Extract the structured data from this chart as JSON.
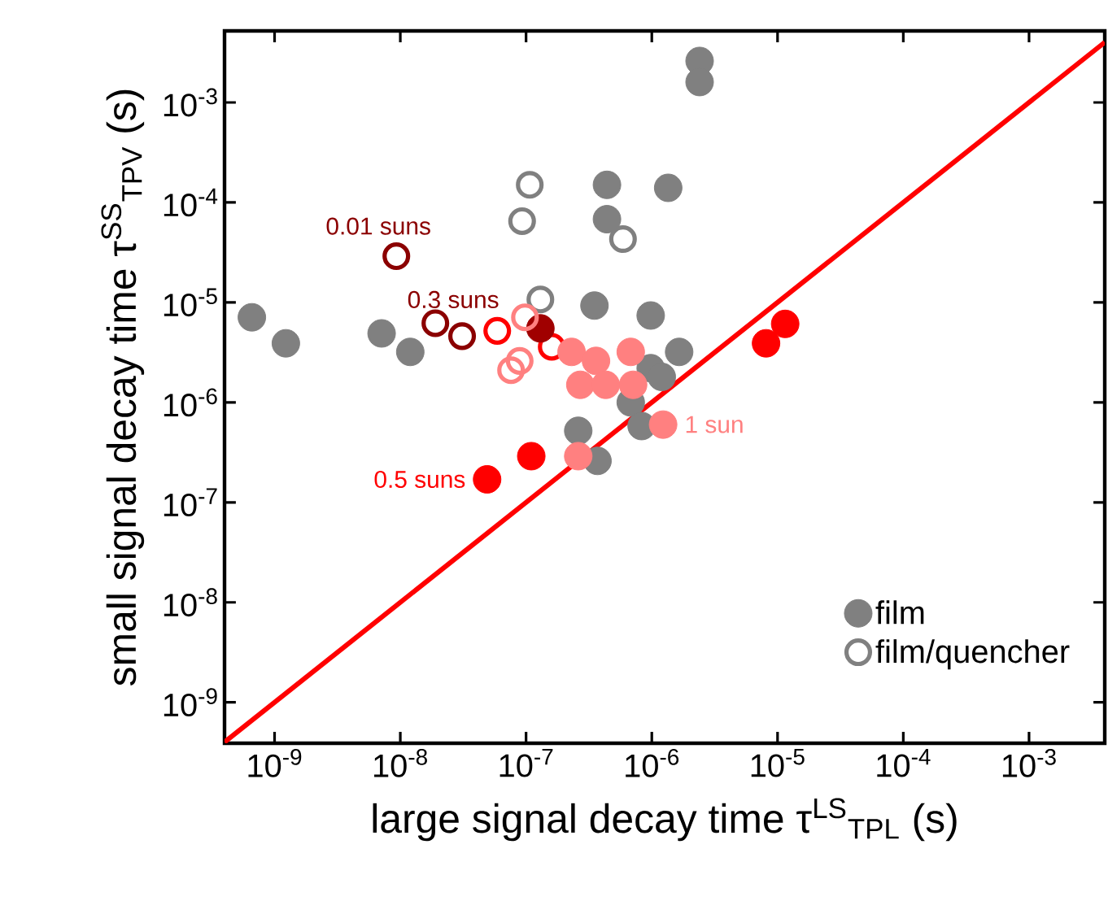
{
  "chart_data": {
    "type": "scatter",
    "xlabel": "large signal decay time τ$^{LS}$$_{TPL}$ (s)",
    "ylabel": "small signal decay time τ$^{SS}$$_{TPV}$ (s)",
    "log": "xy",
    "xlim": [
      4e-10,
      0.004
    ],
    "ylim": [
      3.9e-10,
      0.0052
    ],
    "xticks": [
      {
        "value": 1e-09,
        "label": "10$^{-9}$"
      },
      {
        "value": 1e-08,
        "label": "10$^{-8}$"
      },
      {
        "value": 1e-07,
        "label": "10$^{-7}$"
      },
      {
        "value": 1e-06,
        "label": "10$^{-6}$"
      },
      {
        "value": 1e-05,
        "label": "10$^{-5}$"
      },
      {
        "value": 0.0001,
        "label": "10$^{-4}$"
      },
      {
        "value": 0.001,
        "label": "10$^{-3}$"
      }
    ],
    "yticks": [
      {
        "value": 1e-09,
        "label": "10$^{-9}$"
      },
      {
        "value": 1e-08,
        "label": "10$^{-8}$"
      },
      {
        "value": 1e-07,
        "label": "10$^{-7}$"
      },
      {
        "value": 1e-06,
        "label": "10$^{-6}$"
      },
      {
        "value": 1e-05,
        "label": "10$^{-5}$"
      },
      {
        "value": 0.0001,
        "label": "10$^{-4}$"
      },
      {
        "value": 0.001,
        "label": "10$^{-3}$"
      }
    ],
    "legend": "bottom right",
    "marker": "circle",
    "series": [
      {
        "name": "film",
        "color": "#808080",
        "x": [
          6.6e-10,
          1.23e-09,
          7.1e-09,
          1.2e-08,
          3.5e-07,
          4.4e-07,
          4.4e-07,
          2.4e-06,
          2.4e-06,
          1.35e-06,
          9.8e-07,
          1.65e-06,
          9.8e-07,
          1.2e-06,
          6.8e-07,
          8.3e-07,
          2.6e-07,
          3.7e-07
        ],
        "values": [
          7.1e-06,
          3.9e-06,
          4.9e-06,
          3.2e-06,
          9.3e-06,
          0.00015,
          6.8e-05,
          0.0026,
          0.0016,
          0.00014,
          7.4e-06,
          3.2e-06,
          2.2e-06,
          1.8e-06,
          1e-06,
          5.8e-07,
          5.2e-07,
          2.6e-07
        ]
      },
      {
        "name": "film/quencher",
        "color": "#808080",
        "marker": "circle open",
        "x": [
          1.07e-07,
          9.3e-08,
          1.3e-07,
          5.9e-07
        ],
        "values": [
          0.00015,
          6.5e-05,
          1.07e-05,
          4.3e-05
        ]
      },
      {
        "color": "#8b0000",
        "marker": "circle open",
        "x": [
          9.3e-09,
          1.9e-08,
          3.1e-08
        ],
        "values": [
          2.9e-05,
          6.2e-06,
          4.6e-06
        ]
      },
      {
        "color": "#ff0000",
        "marker": "circle open",
        "x": [
          5.9e-08,
          1.6e-07
        ],
        "values": [
          5.2e-06,
          3.6e-06
        ]
      },
      {
        "color": "#a00000",
        "x": [
          1.3e-07
        ],
        "values": [
          5.5e-06
        ]
      },
      {
        "color": "#ff8080",
        "marker": "circle open",
        "x": [
          9.8e-08,
          8.9e-08,
          7.6e-08
        ],
        "values": [
          7.1e-06,
          2.6e-06,
          2.1e-06
        ]
      },
      {
        "color": "#ff8080",
        "x": [
          2.3e-07,
          3.6e-07,
          6.8e-07,
          2.7e-07,
          4.3e-07,
          7.1e-07,
          1.23e-06,
          2.6e-07
        ],
        "values": [
          3.2e-06,
          2.6e-06,
          3.2e-06,
          1.5e-06,
          1.5e-06,
          1.5e-06,
          6e-07,
          2.9e-07
        ]
      },
      {
        "color": "#ff0000",
        "x": [
          4.9e-08,
          1.1e-07,
          8.1e-06,
          1.15e-05
        ],
        "values": [
          1.7e-07,
          2.9e-07,
          3.9e-06,
          6.1e-06
        ]
      },
      {
        "type": "line",
        "color": "#ff0000",
        "marker": "none",
        "x": [
          4e-10,
          0.004
        ],
        "values": [
          4e-10,
          0.004
        ]
      }
    ],
    "annotations": [
      {
        "text": "0.01 suns",
        "x": 9.3e-09,
        "y": 2.9e-05
      },
      {
        "text": "0.3 suns",
        "x": 1.9e-08,
        "y": 6.2e-06
      },
      {
        "text": "0.5 suns",
        "x": 4.9e-08,
        "y": 1.7e-07
      },
      {
        "text": "1 sun",
        "x": 1.23e-06,
        "y": 6e-07
      }
    ]
  }
}
